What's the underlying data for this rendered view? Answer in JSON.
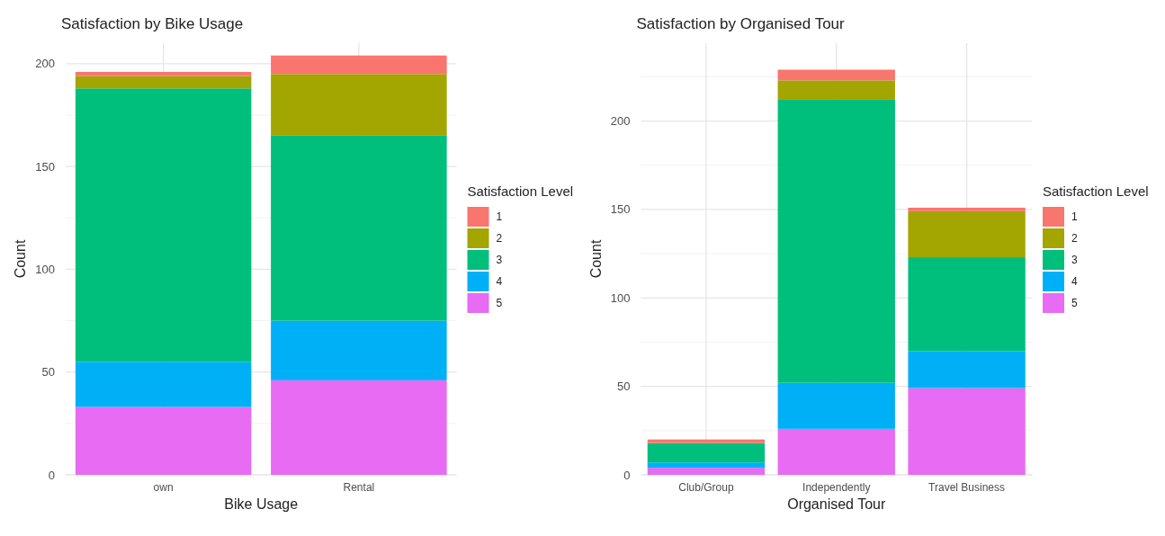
{
  "chart_data": [
    {
      "type": "bar",
      "title": "Satisfaction by Bike Usage",
      "xlabel": "Bike Usage",
      "ylabel": "Count",
      "legend_title": "Satisfaction Level",
      "categories": [
        "own",
        "Rental"
      ],
      "stacked": true,
      "ylim": [
        0,
        210
      ],
      "yticks": [
        0,
        50,
        100,
        150,
        200
      ],
      "grid": true,
      "legend": "right",
      "series": [
        {
          "name": "5",
          "color": "#e76bf3",
          "values": [
            33,
            46
          ]
        },
        {
          "name": "4",
          "color": "#00b0f6",
          "values": [
            22,
            29
          ]
        },
        {
          "name": "3",
          "color": "#00bf7d",
          "values": [
            133,
            90
          ]
        },
        {
          "name": "2",
          "color": "#a3a500",
          "values": [
            6,
            30
          ]
        },
        {
          "name": "1",
          "color": "#f8766d",
          "values": [
            2,
            9
          ]
        }
      ]
    },
    {
      "type": "bar",
      "title": "Satisfaction by Organised Tour",
      "xlabel": "Organised Tour",
      "ylabel": "Count",
      "legend_title": "Satisfaction Level",
      "categories": [
        "Club/Group",
        "Independently",
        "Travel Business"
      ],
      "stacked": true,
      "ylim": [
        0,
        244
      ],
      "yticks": [
        0,
        50,
        100,
        150,
        200
      ],
      "grid": true,
      "legend": "right",
      "series": [
        {
          "name": "5",
          "color": "#e76bf3",
          "values": [
            4,
            26,
            49
          ]
        },
        {
          "name": "4",
          "color": "#00b0f6",
          "values": [
            3,
            26,
            21
          ]
        },
        {
          "name": "3",
          "color": "#00bf7d",
          "values": [
            11,
            160,
            53
          ]
        },
        {
          "name": "2",
          "color": "#a3a500",
          "values": [
            0,
            11,
            26
          ]
        },
        {
          "name": "1",
          "color": "#f8766d",
          "values": [
            2,
            6,
            2
          ]
        }
      ]
    }
  ]
}
